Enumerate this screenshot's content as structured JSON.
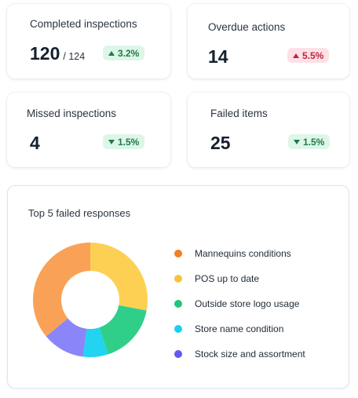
{
  "kpis": [
    {
      "title": "Completed inspections",
      "value": "120",
      "total": "/ 124",
      "change": "3.2%",
      "direction": "up",
      "tone": "good"
    },
    {
      "title": "Overdue actions",
      "value": "14",
      "change": "5.5%",
      "direction": "up",
      "tone": "bad"
    },
    {
      "title": "Missed inspections",
      "value": "4",
      "change": "1.5%",
      "direction": "down",
      "tone": "good"
    },
    {
      "title": "Failed items",
      "value": "25",
      "change": "1.5%",
      "direction": "down",
      "tone": "good"
    }
  ],
  "chart_panel": {
    "title": "Top 5 failed responses"
  },
  "chart_data": {
    "type": "pie",
    "title": "Top 5 failed responses",
    "categories": [
      "Mannequins conditions",
      "POS up to date",
      "Outside store logo usage",
      "Store name condition",
      "Stock size and assortment"
    ],
    "values": [
      36,
      28,
      17,
      7,
      12
    ],
    "colors": [
      "#f9a257",
      "#fdd053",
      "#2fcf8a",
      "#22d3f2",
      "#8a85f8"
    ],
    "legend_colors": [
      "#f47f20",
      "#f7c33a",
      "#20c77e",
      "#18d0f4",
      "#5d5bf0"
    ],
    "legend": "right"
  }
}
